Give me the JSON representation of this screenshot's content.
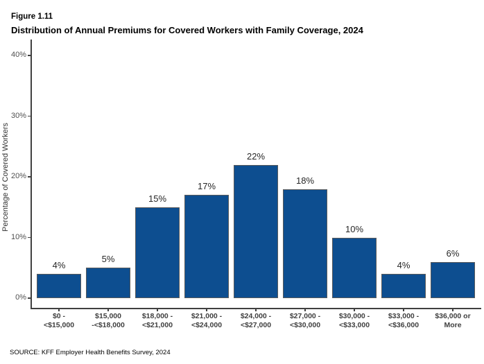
{
  "figure_label": "Figure 1.11",
  "title": "Distribution of Annual Premiums for Covered Workers with Family Coverage, 2024",
  "source": "SOURCE: KFF Employer Health Benefits Survey, 2024",
  "colors": {
    "bar_fill": "#0d4e90",
    "bar_border": "#5a5a5a",
    "axis": "#404040",
    "y_tick_label": "#4f4f4f",
    "x_tick_label": "#3f3f3f",
    "value_label": "#262626"
  },
  "chart_data": {
    "type": "bar",
    "title": "Distribution of Annual Premiums for Covered Workers with Family Coverage, 2024",
    "xlabel": "",
    "ylabel": "Percentage of Covered Workers",
    "categories": [
      "$0 -\n<$15,000",
      "$15,000\n-<$18,000",
      "$18,000 -\n<$21,000",
      "$21,000 -\n<$24,000",
      "$24,000 -\n<$27,000",
      "$27,000 -\n<$30,000",
      "$30,000 -\n<$33,000",
      "$33,000 -\n<$36,000",
      "$36,000 or\nMore"
    ],
    "values": [
      4,
      5,
      15,
      17,
      22,
      18,
      10,
      4,
      6
    ],
    "value_labels": [
      "4%",
      "5%",
      "15%",
      "17%",
      "22%",
      "18%",
      "10%",
      "4%",
      "6%"
    ],
    "ylim": [
      0,
      42
    ],
    "yticks": [
      0,
      10,
      20,
      30,
      40
    ],
    "ytick_labels": [
      "0%",
      "10%",
      "20%",
      "30%",
      "40%"
    ],
    "grid": false,
    "legend": "none"
  }
}
